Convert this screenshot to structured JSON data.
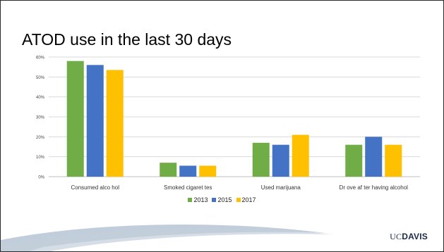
{
  "slide": {
    "title": "ATOD use in the last 30 days",
    "logo_uc": "UC",
    "logo_davis": "DAVIS"
  },
  "colors": {
    "2013": "#70ad47",
    "2015": "#4472c4",
    "2017": "#ffc000",
    "grid": "#d9d9d9",
    "swoosh": "#8fa4bd"
  },
  "chart_data": {
    "type": "bar",
    "title": "",
    "xlabel": "",
    "ylabel": "",
    "categories": [
      "Consumed alco hol",
      "Smoked cigaret tes",
      "Used marijuana",
      "Dr ove af ter having alcohol"
    ],
    "series": [
      {
        "name": "2013",
        "values": [
          58,
          7,
          17,
          16
        ]
      },
      {
        "name": "2015",
        "values": [
          56,
          5.5,
          16,
          20
        ]
      },
      {
        "name": "2017",
        "values": [
          53.5,
          5.5,
          21,
          16
        ]
      }
    ],
    "ylim": [
      0,
      60
    ],
    "yticks": [
      "0%",
      "10%",
      "20%",
      "30%",
      "40%",
      "50%",
      "60%"
    ],
    "grid": true,
    "legend_position": "bottom"
  }
}
